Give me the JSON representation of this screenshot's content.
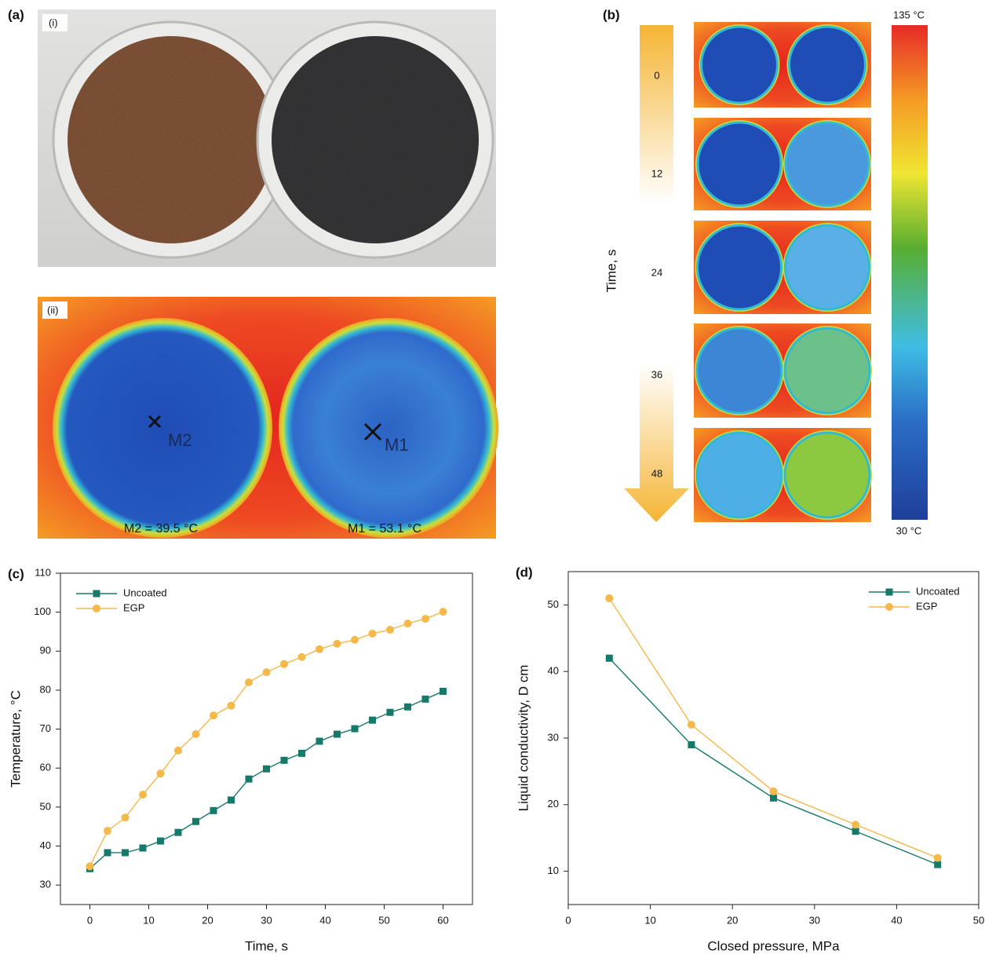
{
  "panels": {
    "a": {
      "label": "(a)",
      "sub_i": "(i)",
      "sub_ii": "(ii)",
      "marker_m2": "M2",
      "marker_m1": "M1",
      "readout_m2": "M2 = 39.5 °C",
      "readout_m1": "M1 = 53.1 °C"
    },
    "b": {
      "label": "(b)",
      "axis_label": "Time, s",
      "times": [
        0,
        12,
        24,
        36,
        48
      ],
      "colorbar_max": "135 °C",
      "colorbar_min": "30 °C"
    }
  },
  "chart_data": [
    {
      "type": "line",
      "panel_label": "(c)",
      "x_label": "Time, s",
      "y_label": "Temperature, °C",
      "x": [
        0,
        3,
        6,
        9,
        12,
        15,
        18,
        21,
        24,
        27,
        30,
        33,
        36,
        39,
        42,
        45,
        48,
        51,
        54,
        57,
        60
      ],
      "series": [
        {
          "name": "Uncoated",
          "color": "#17796a",
          "marker": "square",
          "values": [
            34.2,
            38.3,
            38.3,
            39.5,
            41.3,
            43.5,
            46.3,
            49.1,
            51.8,
            57.2,
            59.8,
            62.0,
            63.8,
            66.9,
            68.7,
            70.1,
            72.3,
            74.3,
            75.7,
            77.7,
            79.7
          ]
        },
        {
          "name": "EGP",
          "color": "#f5b84a",
          "marker": "circle",
          "values": [
            34.8,
            43.9,
            47.3,
            53.2,
            58.6,
            64.5,
            68.7,
            73.5,
            76.0,
            82.0,
            84.6,
            86.7,
            88.5,
            90.5,
            91.9,
            92.9,
            94.5,
            95.5,
            97.1,
            98.3,
            100.1
          ]
        }
      ],
      "xlim": [
        -5,
        65
      ],
      "xticks": [
        0,
        10,
        20,
        30,
        40,
        50,
        60
      ],
      "ylim": [
        25,
        110
      ],
      "yticks": [
        30,
        40,
        50,
        60,
        70,
        80,
        90,
        100,
        110
      ],
      "legend": "upper-left"
    },
    {
      "type": "line",
      "panel_label": "(d)",
      "x_label": "Closed pressure, MPa",
      "y_label": "Liquid conductivity, D cm",
      "x": [
        5,
        15,
        25,
        35,
        45
      ],
      "series": [
        {
          "name": "Uncoated",
          "color": "#17796a",
          "marker": "square",
          "values": [
            42,
            29,
            21,
            16,
            11
          ]
        },
        {
          "name": "EGP",
          "color": "#f5b84a",
          "marker": "circle",
          "values": [
            51,
            32,
            22,
            17,
            12
          ]
        }
      ],
      "xlim": [
        0,
        50
      ],
      "xticks": [
        0,
        10,
        20,
        30,
        40,
        50
      ],
      "ylim": [
        5,
        55
      ],
      "yticks": [
        10,
        20,
        30,
        40,
        50
      ],
      "legend": "upper-right"
    }
  ]
}
